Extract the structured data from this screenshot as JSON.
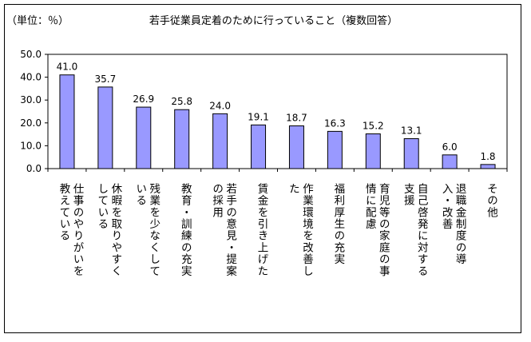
{
  "chart_data": {
    "type": "bar",
    "title": "若手従業員定着のために行っていること（複数回答）",
    "unit_label": "（単位：％）",
    "ylim": [
      0,
      50
    ],
    "y_ticks": [
      "0.0",
      "10.0",
      "20.0",
      "30.0",
      "40.0",
      "50.0"
    ],
    "grid": false,
    "bar_color": "#9999ff",
    "categories": [
      [
        "仕事のやりがいを",
        "教えている"
      ],
      [
        "休暇を取りやすく",
        "している"
      ],
      [
        "残業を少なくして",
        "いる"
      ],
      [
        "教育・訓練の充実"
      ],
      [
        "若手の意見・提案",
        "の採用"
      ],
      [
        "賃金を引き上げた"
      ],
      [
        "作業環境を改善し",
        "た"
      ],
      [
        "福利厚生の充実"
      ],
      [
        "育児等の家庭の事",
        "情に配慮"
      ],
      [
        "自己啓発に対する",
        "支援"
      ],
      [
        "退職金制度の導",
        "入・改善"
      ],
      [
        "その他"
      ]
    ],
    "values": [
      41.0,
      35.7,
      26.9,
      25.8,
      24.0,
      19.1,
      18.7,
      16.3,
      15.2,
      13.1,
      6.0,
      1.8
    ],
    "value_labels": [
      "41.0",
      "35.7",
      "26.9",
      "25.8",
      "24.0",
      "19.1",
      "18.7",
      "16.3",
      "15.2",
      "13.1",
      "6.0",
      "1.8"
    ]
  }
}
